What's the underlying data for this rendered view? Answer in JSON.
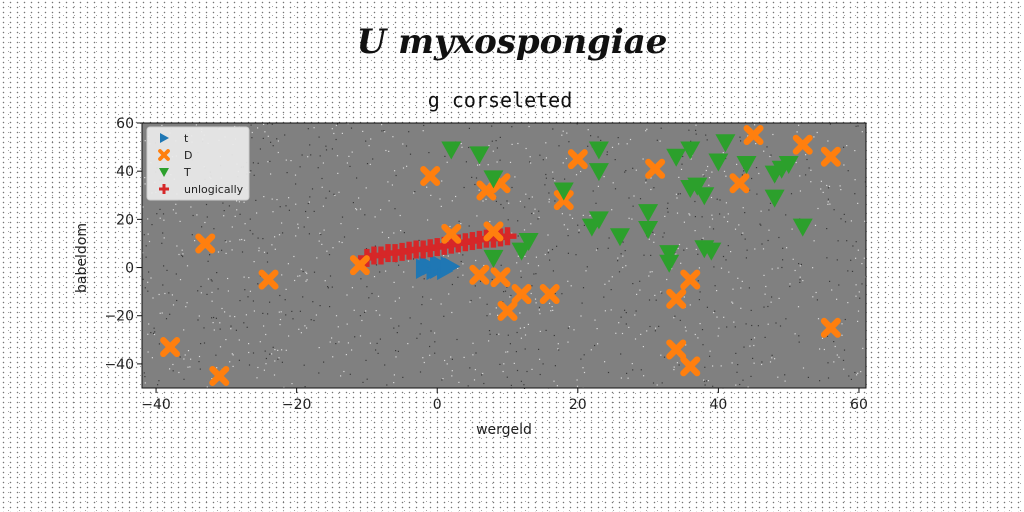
{
  "figure": {
    "suptitle": "U myxospongiae",
    "title": "g corseleted"
  },
  "colors": {
    "plot_bg": "#808080",
    "t": "#1f77b4",
    "D": "#ff7f0e",
    "T": "#2ca02c",
    "unlogically": "#d62728"
  },
  "chart_data": {
    "type": "scatter",
    "title": "g corseleted",
    "xlabel": "wergeld",
    "ylabel": "babeldom",
    "xlim": [
      -42,
      61
    ],
    "ylim": [
      -50,
      60
    ],
    "xticks": [
      -40,
      -20,
      0,
      20,
      40,
      60
    ],
    "yticks": [
      -40,
      -20,
      0,
      20,
      40,
      60
    ],
    "xtick_labels": [
      "−40",
      "−20",
      "0",
      "20",
      "40",
      "60"
    ],
    "ytick_labels": [
      "−40",
      "−20",
      "0",
      "20",
      "40",
      "60"
    ],
    "grid": false,
    "legend_position": "upper left",
    "series": [
      {
        "name": "t",
        "marker": "triangle-right",
        "color": "#1f77b4",
        "points": [
          [
            -2,
            0
          ],
          [
            -1,
            0.5
          ],
          [
            0,
            -1
          ],
          [
            1,
            0
          ],
          [
            -0.5,
            -1.5
          ],
          [
            0.5,
            1
          ],
          [
            2,
            0.5
          ],
          [
            -1.5,
            1
          ],
          [
            1,
            -1.5
          ],
          [
            0,
            1.5
          ],
          [
            -2,
            -1
          ],
          [
            1.5,
            1
          ]
        ]
      },
      {
        "name": "D",
        "marker": "x",
        "color": "#ff7f0e",
        "points": [
          [
            -38,
            -33
          ],
          [
            -33,
            10
          ],
          [
            -31,
            -45
          ],
          [
            -24,
            -5
          ],
          [
            -11,
            1
          ],
          [
            -1,
            38
          ],
          [
            2,
            14
          ],
          [
            6,
            -3
          ],
          [
            7,
            32
          ],
          [
            8,
            15
          ],
          [
            9,
            35
          ],
          [
            9,
            -4
          ],
          [
            10,
            -18
          ],
          [
            12,
            -11
          ],
          [
            16,
            -11
          ],
          [
            18,
            28
          ],
          [
            20,
            45
          ],
          [
            31,
            41
          ],
          [
            34,
            -13
          ],
          [
            34,
            -34
          ],
          [
            36,
            -5
          ],
          [
            36,
            -41
          ],
          [
            43,
            35
          ],
          [
            45,
            55
          ],
          [
            52,
            51
          ],
          [
            56,
            46
          ],
          [
            56,
            -25
          ]
        ]
      },
      {
        "name": "T",
        "marker": "triangle-down",
        "color": "#2ca02c",
        "points": [
          [
            2,
            49
          ],
          [
            6,
            47
          ],
          [
            8,
            37
          ],
          [
            8,
            4
          ],
          [
            12,
            7
          ],
          [
            13,
            11
          ],
          [
            18,
            32
          ],
          [
            22,
            17
          ],
          [
            23,
            20
          ],
          [
            23,
            40
          ],
          [
            23,
            49
          ],
          [
            26,
            13
          ],
          [
            30,
            23
          ],
          [
            30,
            16
          ],
          [
            33,
            6
          ],
          [
            33,
            2
          ],
          [
            34,
            46
          ],
          [
            36,
            33
          ],
          [
            36,
            49
          ],
          [
            37,
            34
          ],
          [
            38,
            8
          ],
          [
            38,
            30
          ],
          [
            39,
            7
          ],
          [
            40,
            44
          ],
          [
            41,
            52
          ],
          [
            44,
            43
          ],
          [
            48,
            29
          ],
          [
            48,
            39
          ],
          [
            49,
            41
          ],
          [
            50,
            43
          ],
          [
            52,
            17
          ]
        ]
      },
      {
        "name": "unlogically",
        "marker": "plus",
        "color": "#d62728",
        "points": [
          [
            -10,
            4
          ],
          [
            -9,
            5
          ],
          [
            -8,
            5
          ],
          [
            -7,
            6
          ],
          [
            -6,
            6
          ],
          [
            -5,
            6.5
          ],
          [
            -4,
            7
          ],
          [
            -3,
            7.5
          ],
          [
            -2,
            7.5
          ],
          [
            -1,
            8
          ],
          [
            0,
            8.5
          ],
          [
            1,
            9
          ],
          [
            2,
            9.5
          ],
          [
            3,
            10
          ],
          [
            4,
            10.5
          ],
          [
            5,
            11
          ],
          [
            6,
            11.5
          ],
          [
            7,
            12
          ],
          [
            8,
            12
          ],
          [
            9,
            12.5
          ],
          [
            10,
            13
          ]
        ]
      }
    ]
  }
}
